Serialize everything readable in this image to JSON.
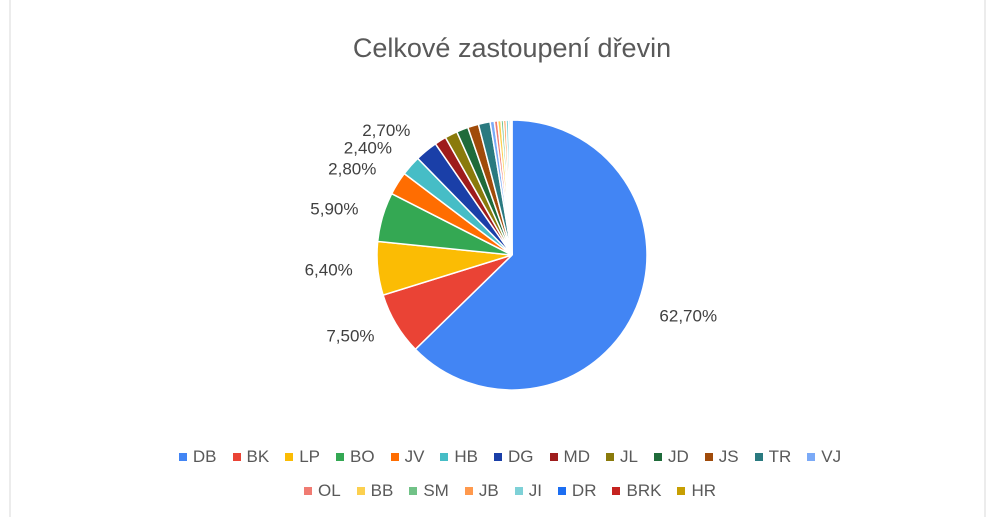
{
  "chart_data": {
    "type": "pie",
    "title": "Celkové zastoupení dřevin",
    "categories": [
      "DB",
      "BK",
      "LP",
      "BO",
      "JV",
      "HB",
      "DG",
      "MD",
      "JL",
      "JD",
      "JS",
      "TR",
      "VJ",
      "OL",
      "BB",
      "SM",
      "JB",
      "JI",
      "DR",
      "BRK",
      "HR"
    ],
    "values": [
      62.7,
      7.5,
      6.4,
      5.9,
      2.8,
      2.4,
      2.7,
      1.4,
      1.5,
      1.4,
      1.3,
      1.4,
      0.5,
      0.4,
      0.4,
      0.3,
      0.3,
      0.3,
      0.2,
      0.1,
      0.1
    ],
    "value_labels": [
      "62,70%",
      "7,50%",
      "6,40%",
      "5,90%",
      "2,80%",
      "2,40%",
      "2,70%",
      null,
      null,
      null,
      null,
      null,
      null,
      null,
      null,
      null,
      null,
      null,
      null,
      null,
      null
    ],
    "colors": [
      "#4285f4",
      "#ea4335",
      "#fbbc04",
      "#34a853",
      "#ff6d01",
      "#46bdc6",
      "#1a3fa8",
      "#9e1c1c",
      "#8a7a0b",
      "#1f6b3a",
      "#a04b0a",
      "#2a7a80",
      "#7baaf7",
      "#f07b72",
      "#fcd04f",
      "#71c287",
      "#ff994d",
      "#7ed1d7",
      "#1c6ef2",
      "#c5221f",
      "#c79f03"
    ],
    "legend": "bottom"
  }
}
